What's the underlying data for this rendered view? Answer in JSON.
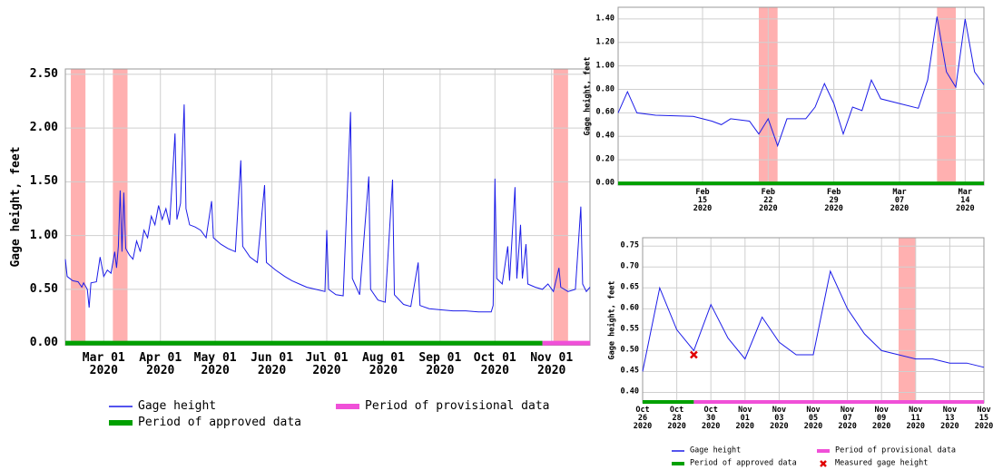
{
  "chart_data": [
    {
      "type": "line",
      "y_label": "Gage height, feet",
      "xlim": [
        "2020-02-09",
        "2020-11-22"
      ],
      "xticks": [
        {
          "value": "2020-03-01",
          "label": "Mar 01\n2020"
        },
        {
          "value": "2020-04-01",
          "label": "Apr 01\n2020"
        },
        {
          "value": "2020-05-01",
          "label": "May 01\n2020"
        },
        {
          "value": "2020-06-01",
          "label": "Jun 01\n2020"
        },
        {
          "value": "2020-07-01",
          "label": "Jul 01\n2020"
        },
        {
          "value": "2020-08-01",
          "label": "Aug 01\n2020"
        },
        {
          "value": "2020-09-01",
          "label": "Sep 01\n2020"
        },
        {
          "value": "2020-10-01",
          "label": "Oct 01\n2020"
        },
        {
          "value": "2020-11-01",
          "label": "Nov 01\n2020"
        }
      ],
      "ylim": [
        -0.02,
        2.55
      ],
      "yticks": [
        {
          "value": 0,
          "label": "0.00"
        },
        {
          "value": 0.5,
          "label": "0.50"
        },
        {
          "value": 1,
          "label": "1.00"
        },
        {
          "value": 1.5,
          "label": "1.50"
        },
        {
          "value": 2,
          "label": "2.00"
        },
        {
          "value": 2.5,
          "label": "2.50"
        }
      ],
      "grid": true,
      "x": [
        "2020-02-09",
        "2020-02-10",
        "2020-02-13",
        "2020-02-16",
        "2020-02-18",
        "2020-02-19",
        "2020-02-21",
        "2020-02-22",
        "2020-02-23",
        "2020-02-26",
        "2020-02-28",
        "2020-03-01",
        "2020-03-03",
        "2020-03-05",
        "2020-03-07",
        "2020-03-08",
        "2020-03-09",
        "2020-03-10",
        "2020-03-11",
        "2020-03-12",
        "2020-03-13",
        "2020-03-15",
        "2020-03-17",
        "2020-03-19",
        "2020-03-21",
        "2020-03-23",
        "2020-03-25",
        "2020-03-27",
        "2020-03-29",
        "2020-03-31",
        "2020-04-02",
        "2020-04-04",
        "2020-04-06",
        "2020-04-09",
        "2020-04-10",
        "2020-04-12",
        "2020-04-14",
        "2020-04-15",
        "2020-04-17",
        "2020-04-20",
        "2020-04-23",
        "2020-04-26",
        "2020-04-29",
        "2020-04-30",
        "2020-05-04",
        "2020-05-08",
        "2020-05-12",
        "2020-05-15",
        "2020-05-16",
        "2020-05-20",
        "2020-05-24",
        "2020-05-28",
        "2020-05-29",
        "2020-06-03",
        "2020-06-08",
        "2020-06-12",
        "2020-06-16",
        "2020-06-20",
        "2020-06-25",
        "2020-06-30",
        "2020-07-01",
        "2020-07-02",
        "2020-07-06",
        "2020-07-10",
        "2020-07-14",
        "2020-07-15",
        "2020-07-19",
        "2020-07-24",
        "2020-07-25",
        "2020-07-29",
        "2020-08-02",
        "2020-08-06",
        "2020-08-07",
        "2020-08-12",
        "2020-08-16",
        "2020-08-20",
        "2020-08-21",
        "2020-08-26",
        "2020-09-01",
        "2020-09-08",
        "2020-09-15",
        "2020-09-22",
        "2020-09-29",
        "2020-09-30",
        "2020-10-01",
        "2020-10-02",
        "2020-10-05",
        "2020-10-08",
        "2020-10-09",
        "2020-10-12",
        "2020-10-13",
        "2020-10-15",
        "2020-10-16",
        "2020-10-18",
        "2020-10-19",
        "2020-10-23",
        "2020-10-27",
        "2020-10-30",
        "2020-11-02",
        "2020-11-05",
        "2020-11-06",
        "2020-11-10",
        "2020-11-14",
        "2020-11-17",
        "2020-11-18",
        "2020-11-20",
        "2020-11-22"
      ],
      "series": [
        {
          "name": "Gage height",
          "color": "#1c1ce8",
          "values": [
            0.78,
            0.62,
            0.58,
            0.57,
            0.52,
            0.56,
            0.5,
            0.33,
            0.56,
            0.57,
            0.8,
            0.62,
            0.68,
            0.65,
            0.85,
            0.7,
            0.9,
            1.42,
            0.85,
            1.4,
            0.88,
            0.82,
            0.78,
            0.95,
            0.85,
            1.05,
            0.98,
            1.18,
            1.1,
            1.28,
            1.15,
            1.25,
            1.1,
            1.95,
            1.15,
            1.3,
            2.22,
            1.25,
            1.1,
            1.08,
            1.05,
            0.98,
            1.32,
            0.98,
            0.92,
            0.88,
            0.85,
            1.7,
            0.9,
            0.8,
            0.75,
            1.47,
            0.75,
            0.68,
            0.62,
            0.58,
            0.55,
            0.52,
            0.5,
            0.48,
            1.05,
            0.5,
            0.45,
            0.44,
            2.15,
            0.6,
            0.45,
            1.55,
            0.5,
            0.4,
            0.38,
            1.52,
            0.45,
            0.36,
            0.34,
            0.75,
            0.35,
            0.32,
            0.31,
            0.3,
            0.3,
            0.29,
            0.29,
            0.35,
            1.53,
            0.6,
            0.55,
            0.9,
            0.58,
            1.45,
            0.6,
            1.1,
            0.6,
            0.92,
            0.55,
            0.52,
            0.5,
            0.55,
            0.48,
            0.7,
            0.52,
            0.48,
            0.5,
            1.27,
            0.55,
            0.48,
            0.52
          ]
        }
      ],
      "periods": [
        {
          "name": "Period of approved data",
          "color": "#00a000",
          "start": "2020-02-09",
          "end": "2020-10-27"
        },
        {
          "name": "Period of provisional data",
          "color": "#f050d8",
          "start": "2020-10-27",
          "end": "2020-11-22"
        }
      ],
      "shade_color": "#ffb0b0",
      "shaded_periods": [
        [
          "2020-02-12",
          "2020-02-20"
        ],
        [
          "2020-03-06",
          "2020-03-14"
        ],
        [
          "2020-11-02",
          "2020-11-10"
        ]
      ]
    },
    {
      "type": "line",
      "y_label": "Gage height, feet",
      "xlim": [
        "2020-02-06",
        "2020-03-16"
      ],
      "xticks": [
        {
          "value": "2020-02-15",
          "label": "Feb\n15\n2020"
        },
        {
          "value": "2020-02-22",
          "label": "Feb\n22\n2020"
        },
        {
          "value": "2020-02-29",
          "label": "Feb\n29\n2020"
        },
        {
          "value": "2020-03-07",
          "label": "Mar\n07\n2020"
        },
        {
          "value": "2020-03-14",
          "label": "Mar\n14\n2020"
        }
      ],
      "ylim": [
        -0.015,
        1.5
      ],
      "yticks": [
        {
          "value": 0,
          "label": "0.00"
        },
        {
          "value": 0.2,
          "label": "0.20"
        },
        {
          "value": 0.4,
          "label": "0.40"
        },
        {
          "value": 0.6,
          "label": "0.60"
        },
        {
          "value": 0.8,
          "label": "0.80"
        },
        {
          "value": 1,
          "label": "1.00"
        },
        {
          "value": 1.2,
          "label": "1.20"
        },
        {
          "value": 1.4,
          "label": "1.40"
        }
      ],
      "grid": true,
      "x": [
        "2020-02-06",
        "2020-02-07",
        "2020-02-08",
        "2020-02-10",
        "2020-02-14",
        "2020-02-16",
        "2020-02-17",
        "2020-02-18",
        "2020-02-20",
        "2020-02-21",
        "2020-02-22",
        "2020-02-23",
        "2020-02-24",
        "2020-02-26",
        "2020-02-27",
        "2020-02-28",
        "2020-02-29",
        "2020-03-01",
        "2020-03-02",
        "2020-03-03",
        "2020-03-04",
        "2020-03-05",
        "2020-03-07",
        "2020-03-09",
        "2020-03-10",
        "2020-03-11",
        "2020-03-12",
        "2020-03-13",
        "2020-03-14",
        "2020-03-15",
        "2020-03-16"
      ],
      "series": [
        {
          "color": "#1c1ce8",
          "values": [
            0.6,
            0.78,
            0.6,
            0.58,
            0.57,
            0.53,
            0.5,
            0.55,
            0.53,
            0.42,
            0.55,
            0.32,
            0.55,
            0.55,
            0.65,
            0.85,
            0.68,
            0.42,
            0.65,
            0.62,
            0.88,
            0.72,
            0.68,
            0.64,
            0.88,
            1.42,
            0.95,
            0.82,
            1.4,
            0.95,
            0.84
          ]
        }
      ],
      "periods": [
        {
          "color": "#00a000",
          "start": "2020-02-06",
          "end": "2020-03-16"
        }
      ],
      "shade_color": "#ffb0b0",
      "shaded_periods": [
        [
          "2020-02-21",
          "2020-02-23"
        ],
        [
          "2020-03-11",
          "2020-03-13"
        ]
      ]
    },
    {
      "type": "line",
      "y_label": "Gage height, feet",
      "xlim": [
        "2020-10-26",
        "2020-11-15"
      ],
      "xticks": [
        {
          "value": "2020-10-26",
          "label": "Oct\n26\n2020"
        },
        {
          "value": "2020-10-28",
          "label": "Oct\n28\n2020"
        },
        {
          "value": "2020-10-30",
          "label": "Oct\n30\n2020"
        },
        {
          "value": "2020-11-01",
          "label": "Nov\n01\n2020"
        },
        {
          "value": "2020-11-03",
          "label": "Nov\n03\n2020"
        },
        {
          "value": "2020-11-05",
          "label": "Nov\n05\n2020"
        },
        {
          "value": "2020-11-07",
          "label": "Nov\n07\n2020"
        },
        {
          "value": "2020-11-09",
          "label": "Nov\n09\n2020"
        },
        {
          "value": "2020-11-11",
          "label": "Nov\n11\n2020"
        },
        {
          "value": "2020-11-13",
          "label": "Nov\n13\n2020"
        },
        {
          "value": "2020-11-15",
          "label": "Nov\n15\n2020"
        }
      ],
      "ylim": [
        0.375,
        0.77
      ],
      "yticks": [
        {
          "value": 0.4,
          "label": "0.40"
        },
        {
          "value": 0.45,
          "label": "0.45"
        },
        {
          "value": 0.5,
          "label": "0.50"
        },
        {
          "value": 0.55,
          "label": "0.55"
        },
        {
          "value": 0.6,
          "label": "0.60"
        },
        {
          "value": 0.65,
          "label": "0.65"
        },
        {
          "value": 0.7,
          "label": "0.70"
        },
        {
          "value": 0.75,
          "label": "0.75"
        }
      ],
      "grid": true,
      "x": [
        "2020-10-26",
        "2020-10-27",
        "2020-10-28",
        "2020-10-29",
        "2020-10-30",
        "2020-10-31",
        "2020-11-01",
        "2020-11-02",
        "2020-11-03",
        "2020-11-04",
        "2020-11-05",
        "2020-11-06",
        "2020-11-07",
        "2020-11-08",
        "2020-11-09",
        "2020-11-10",
        "2020-11-11",
        "2020-11-12",
        "2020-11-13",
        "2020-11-14",
        "2020-11-15"
      ],
      "series": [
        {
          "name": "Gage height",
          "color": "#1c1ce8",
          "values": [
            0.45,
            0.65,
            0.55,
            0.5,
            0.61,
            0.53,
            0.48,
            0.58,
            0.52,
            0.49,
            0.49,
            0.69,
            0.6,
            0.54,
            0.5,
            0.49,
            0.48,
            0.48,
            0.47,
            0.47,
            0.46
          ]
        }
      ],
      "periods": [
        {
          "name": "Period of approved data",
          "color": "#00a000",
          "start": "2020-10-26",
          "end": "2020-10-29"
        },
        {
          "name": "Period of provisional data",
          "color": "#f050d8",
          "start": "2020-10-29",
          "end": "2020-11-15"
        }
      ],
      "points": {
        "name": "Measured gage height",
        "color": "#e00000",
        "x": [
          "2020-10-29"
        ],
        "values": [
          0.49
        ]
      },
      "shade_color": "#ffb0b0",
      "shaded_periods": [
        [
          "2020-11-10",
          "2020-11-11"
        ]
      ]
    }
  ]
}
